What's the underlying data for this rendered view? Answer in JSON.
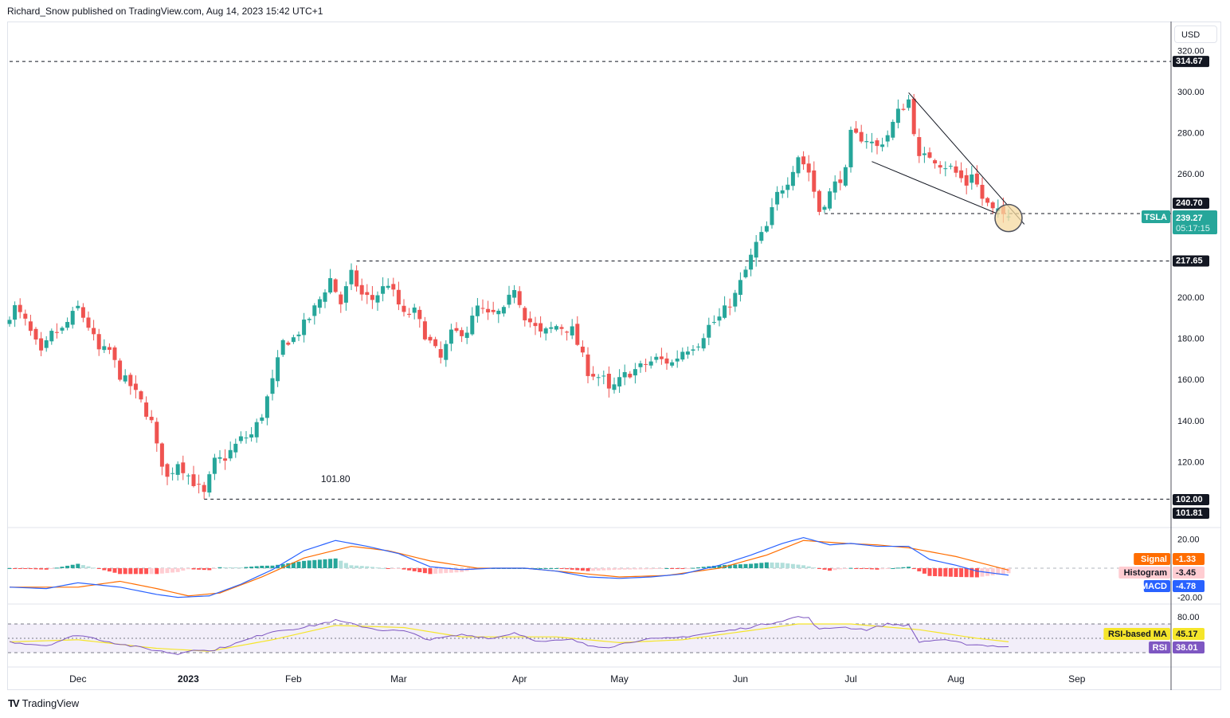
{
  "header": "Richard_Snow published on TradingView.com, Aug 14, 2023 15:42 UTC+1",
  "currency_button": "USD",
  "footer_logo": "TradingView",
  "symbol": "TSLA",
  "colors": {
    "up": "#26a69a",
    "down": "#ef5350",
    "macd": "#2962ff",
    "signal": "#ff6d00",
    "rsi": "#7e57c2",
    "rsi_ma": "#f5e52a",
    "grid": "#e0e3eb"
  },
  "chart_data": {
    "type": "candlestick",
    "symbol": "TSLA",
    "x_axis_labels": [
      {
        "label": "Dec",
        "day": 13
      },
      {
        "label": "2023",
        "day": 34,
        "bold": true
      },
      {
        "label": "Feb",
        "day": 54
      },
      {
        "label": "Mar",
        "day": 74
      },
      {
        "label": "Apr",
        "day": 97
      },
      {
        "label": "May",
        "day": 116
      },
      {
        "label": "Jun",
        "day": 139
      },
      {
        "label": "Jul",
        "day": 160
      },
      {
        "label": "Aug",
        "day": 180
      },
      {
        "label": "Sep",
        "day": 203
      }
    ],
    "price_axis": {
      "ylim": [
        96,
        324
      ],
      "ticks": [
        "120.00",
        "140.00",
        "160.00",
        "180.00",
        "200.00",
        "260.00",
        "280.00",
        "300.00",
        "320.00"
      ],
      "tick_values": [
        120,
        140,
        160,
        180,
        200,
        260,
        280,
        300,
        320
      ]
    },
    "close_keypoints_day_price": [
      [
        0,
        191.5
      ],
      [
        1,
        195
      ],
      [
        3,
        188
      ],
      [
        6,
        172
      ],
      [
        8,
        182
      ],
      [
        10,
        184
      ],
      [
        13,
        195
      ],
      [
        15,
        186
      ],
      [
        17,
        174
      ],
      [
        19,
        174
      ],
      [
        21,
        162
      ],
      [
        23,
        157
      ],
      [
        25,
        149
      ],
      [
        27,
        139
      ],
      [
        28,
        127
      ],
      [
        30,
        112
      ],
      [
        32,
        120
      ],
      [
        35,
        110
      ],
      [
        37,
        104
      ],
      [
        39,
        120
      ],
      [
        41,
        122
      ],
      [
        44,
        131
      ],
      [
        46,
        133
      ],
      [
        48,
        143
      ],
      [
        50,
        159
      ],
      [
        52,
        178
      ],
      [
        54,
        180
      ],
      [
        57,
        190
      ],
      [
        59,
        199
      ],
      [
        61,
        209
      ],
      [
        63,
        197
      ],
      [
        65,
        211
      ],
      [
        67,
        201
      ],
      [
        69,
        199
      ],
      [
        72,
        207
      ],
      [
        75,
        191
      ],
      [
        77,
        193
      ],
      [
        79,
        182
      ],
      [
        82,
        170
      ],
      [
        84,
        182
      ],
      [
        87,
        184
      ],
      [
        89,
        195
      ],
      [
        91,
        191
      ],
      [
        94,
        193
      ],
      [
        96,
        205
      ],
      [
        98,
        191
      ],
      [
        101,
        182
      ],
      [
        104,
        186
      ],
      [
        107,
        184
      ],
      [
        110,
        164
      ],
      [
        113,
        160
      ],
      [
        114,
        154
      ],
      [
        117,
        162
      ],
      [
        120,
        166
      ],
      [
        123,
        170
      ],
      [
        126,
        168
      ],
      [
        128,
        174
      ],
      [
        131,
        178
      ],
      [
        133,
        186
      ],
      [
        135,
        190
      ],
      [
        138,
        201
      ],
      [
        140,
        213
      ],
      [
        142,
        226
      ],
      [
        144,
        234
      ],
      [
        146,
        250
      ],
      [
        148,
        257
      ],
      [
        150,
        269
      ],
      [
        152,
        261
      ],
      [
        154,
        242
      ],
      [
        157,
        255
      ],
      [
        159,
        261
      ],
      [
        160,
        279
      ],
      [
        163,
        277
      ],
      [
        165,
        273
      ],
      [
        167,
        279
      ],
      [
        169,
        290
      ],
      [
        171,
        296
      ],
      [
        173,
        267
      ],
      [
        175,
        269
      ],
      [
        177,
        265
      ],
      [
        179,
        263
      ],
      [
        182,
        255
      ],
      [
        183,
        261
      ],
      [
        185,
        248
      ],
      [
        187,
        242
      ],
      [
        190,
        239.27
      ]
    ],
    "levels": [
      {
        "value": 314.67,
        "label": "314.67",
        "from_day": 0
      },
      {
        "value": 240.7,
        "label": "240.70",
        "from_day": 155
      },
      {
        "value": 217.65,
        "label": "217.65",
        "from_day": 66
      },
      {
        "value": 101.81,
        "label": "101.81",
        "from_day": 37
      }
    ],
    "extra_badge": {
      "value": 102.0,
      "label": "102.00"
    },
    "last_price": {
      "value": 239.27,
      "label": "239.27",
      "countdown": "05:17:15"
    },
    "annotation": {
      "text": "101.80",
      "day": 62,
      "price": 110
    },
    "trendlines": [
      {
        "name": "upper",
        "points": [
          [
            171,
            299.5
          ],
          [
            193,
            235.5
          ]
        ]
      },
      {
        "name": "lower",
        "points": [
          [
            164,
            266
          ],
          [
            188,
            240.5
          ]
        ]
      }
    ],
    "highlight_circle": {
      "day": 190,
      "price": 238.5
    },
    "macd": {
      "axis_ticks": [
        "20.00",
        "-20.00"
      ],
      "axis_values": [
        20,
        -20
      ],
      "macd_keypoints": [
        [
          0,
          -13
        ],
        [
          7,
          -14
        ],
        [
          13,
          -10
        ],
        [
          21,
          -13
        ],
        [
          28,
          -18
        ],
        [
          32,
          -20
        ],
        [
          38,
          -19
        ],
        [
          44,
          -11
        ],
        [
          50,
          -1
        ],
        [
          56,
          12
        ],
        [
          62,
          19
        ],
        [
          68,
          15
        ],
        [
          74,
          10
        ],
        [
          80,
          1
        ],
        [
          86,
          -1
        ],
        [
          92,
          0
        ],
        [
          98,
          0
        ],
        [
          104,
          -2
        ],
        [
          110,
          -6
        ],
        [
          116,
          -7
        ],
        [
          122,
          -6
        ],
        [
          128,
          -4
        ],
        [
          135,
          2
        ],
        [
          141,
          9
        ],
        [
          147,
          17
        ],
        [
          151,
          21
        ],
        [
          156,
          16
        ],
        [
          160,
          17
        ],
        [
          165,
          15
        ],
        [
          171,
          15
        ],
        [
          175,
          6
        ],
        [
          180,
          2
        ],
        [
          184,
          -2
        ],
        [
          190,
          -4.78
        ]
      ],
      "signal_keypoints": [
        [
          0,
          -13
        ],
        [
          13,
          -13
        ],
        [
          21,
          -9
        ],
        [
          28,
          -14
        ],
        [
          34,
          -19
        ],
        [
          40,
          -17
        ],
        [
          48,
          -6
        ],
        [
          56,
          7
        ],
        [
          65,
          15
        ],
        [
          72,
          12
        ],
        [
          80,
          5
        ],
        [
          89,
          0
        ],
        [
          98,
          0
        ],
        [
          107,
          -3
        ],
        [
          116,
          -6
        ],
        [
          125,
          -5
        ],
        [
          135,
          0
        ],
        [
          144,
          9
        ],
        [
          151,
          19
        ],
        [
          159,
          17
        ],
        [
          165,
          16
        ],
        [
          171,
          14
        ],
        [
          180,
          8
        ],
        [
          190,
          -1.33
        ]
      ],
      "badges": [
        {
          "name": "Signal",
          "value": "-1.33"
        },
        {
          "name": "Histogram",
          "value": "-3.45"
        },
        {
          "name": "MACD",
          "value": "-4.78"
        }
      ]
    },
    "rsi": {
      "axis_ticks": [
        "80.00"
      ],
      "axis_values": [
        80
      ],
      "band": [
        30,
        70
      ],
      "rsi_keypoints": [
        [
          0,
          45
        ],
        [
          7,
          40
        ],
        [
          13,
          55
        ],
        [
          21,
          42
        ],
        [
          28,
          33
        ],
        [
          32,
          28
        ],
        [
          35,
          35
        ],
        [
          38,
          32
        ],
        [
          44,
          45
        ],
        [
          50,
          60
        ],
        [
          56,
          65
        ],
        [
          62,
          75
        ],
        [
          65,
          70
        ],
        [
          70,
          62
        ],
        [
          75,
          60
        ],
        [
          80,
          48
        ],
        [
          86,
          55
        ],
        [
          92,
          50
        ],
        [
          96,
          58
        ],
        [
          101,
          45
        ],
        [
          107,
          48
        ],
        [
          110,
          40
        ],
        [
          114,
          38
        ],
        [
          120,
          48
        ],
        [
          126,
          50
        ],
        [
          131,
          55
        ],
        [
          138,
          62
        ],
        [
          144,
          70
        ],
        [
          150,
          80
        ],
        [
          152,
          78
        ],
        [
          154,
          62
        ],
        [
          158,
          66
        ],
        [
          163,
          62
        ],
        [
          167,
          70
        ],
        [
          171,
          68
        ],
        [
          173,
          45
        ],
        [
          177,
          48
        ],
        [
          182,
          42
        ],
        [
          186,
          40
        ],
        [
          190,
          38.01
        ]
      ],
      "ma_keypoints": [
        [
          0,
          45
        ],
        [
          13,
          48
        ],
        [
          28,
          36
        ],
        [
          38,
          32
        ],
        [
          50,
          48
        ],
        [
          62,
          68
        ],
        [
          75,
          65
        ],
        [
          86,
          52
        ],
        [
          104,
          52
        ],
        [
          116,
          44
        ],
        [
          128,
          48
        ],
        [
          140,
          60
        ],
        [
          150,
          70
        ],
        [
          160,
          70
        ],
        [
          173,
          62
        ],
        [
          184,
          50
        ],
        [
          190,
          45.17
        ]
      ],
      "badges": [
        {
          "name": "RSI-based MA",
          "value": "45.17"
        },
        {
          "name": "RSI",
          "value": "38.01"
        }
      ]
    }
  }
}
